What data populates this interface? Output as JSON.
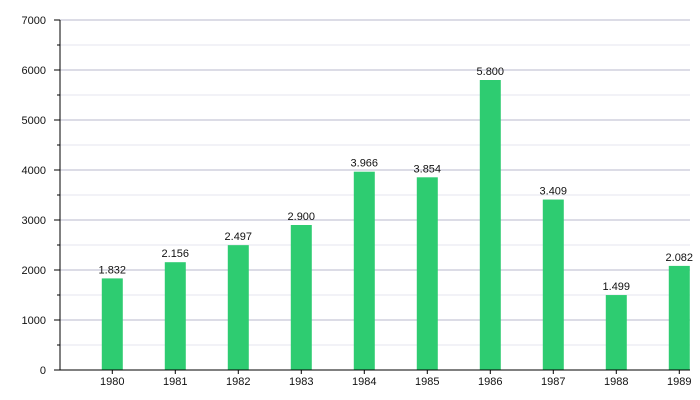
{
  "chart_data": {
    "type": "bar",
    "categories": [
      "1980",
      "1981",
      "1982",
      "1983",
      "1984",
      "1985",
      "1986",
      "1987",
      "1988",
      "1989"
    ],
    "values": [
      1832,
      2156,
      2497,
      2900,
      3966,
      3854,
      5800,
      3409,
      1499,
      2082
    ],
    "data_labels": [
      "1.832",
      "2.156",
      "2.497",
      "2.900",
      "3.966",
      "3.854",
      "5.800",
      "3.409",
      "1.499",
      "2.082"
    ],
    "yticks": [
      0,
      1000,
      2000,
      3000,
      4000,
      5000,
      6000,
      7000
    ],
    "ylim": [
      0,
      7000
    ],
    "grid": true,
    "legend": "none",
    "colors": {
      "bar": "#2ecc71",
      "grid_major": "#b8b8cc",
      "grid_minor": "#e6e6ef",
      "axis": "#000000"
    }
  }
}
